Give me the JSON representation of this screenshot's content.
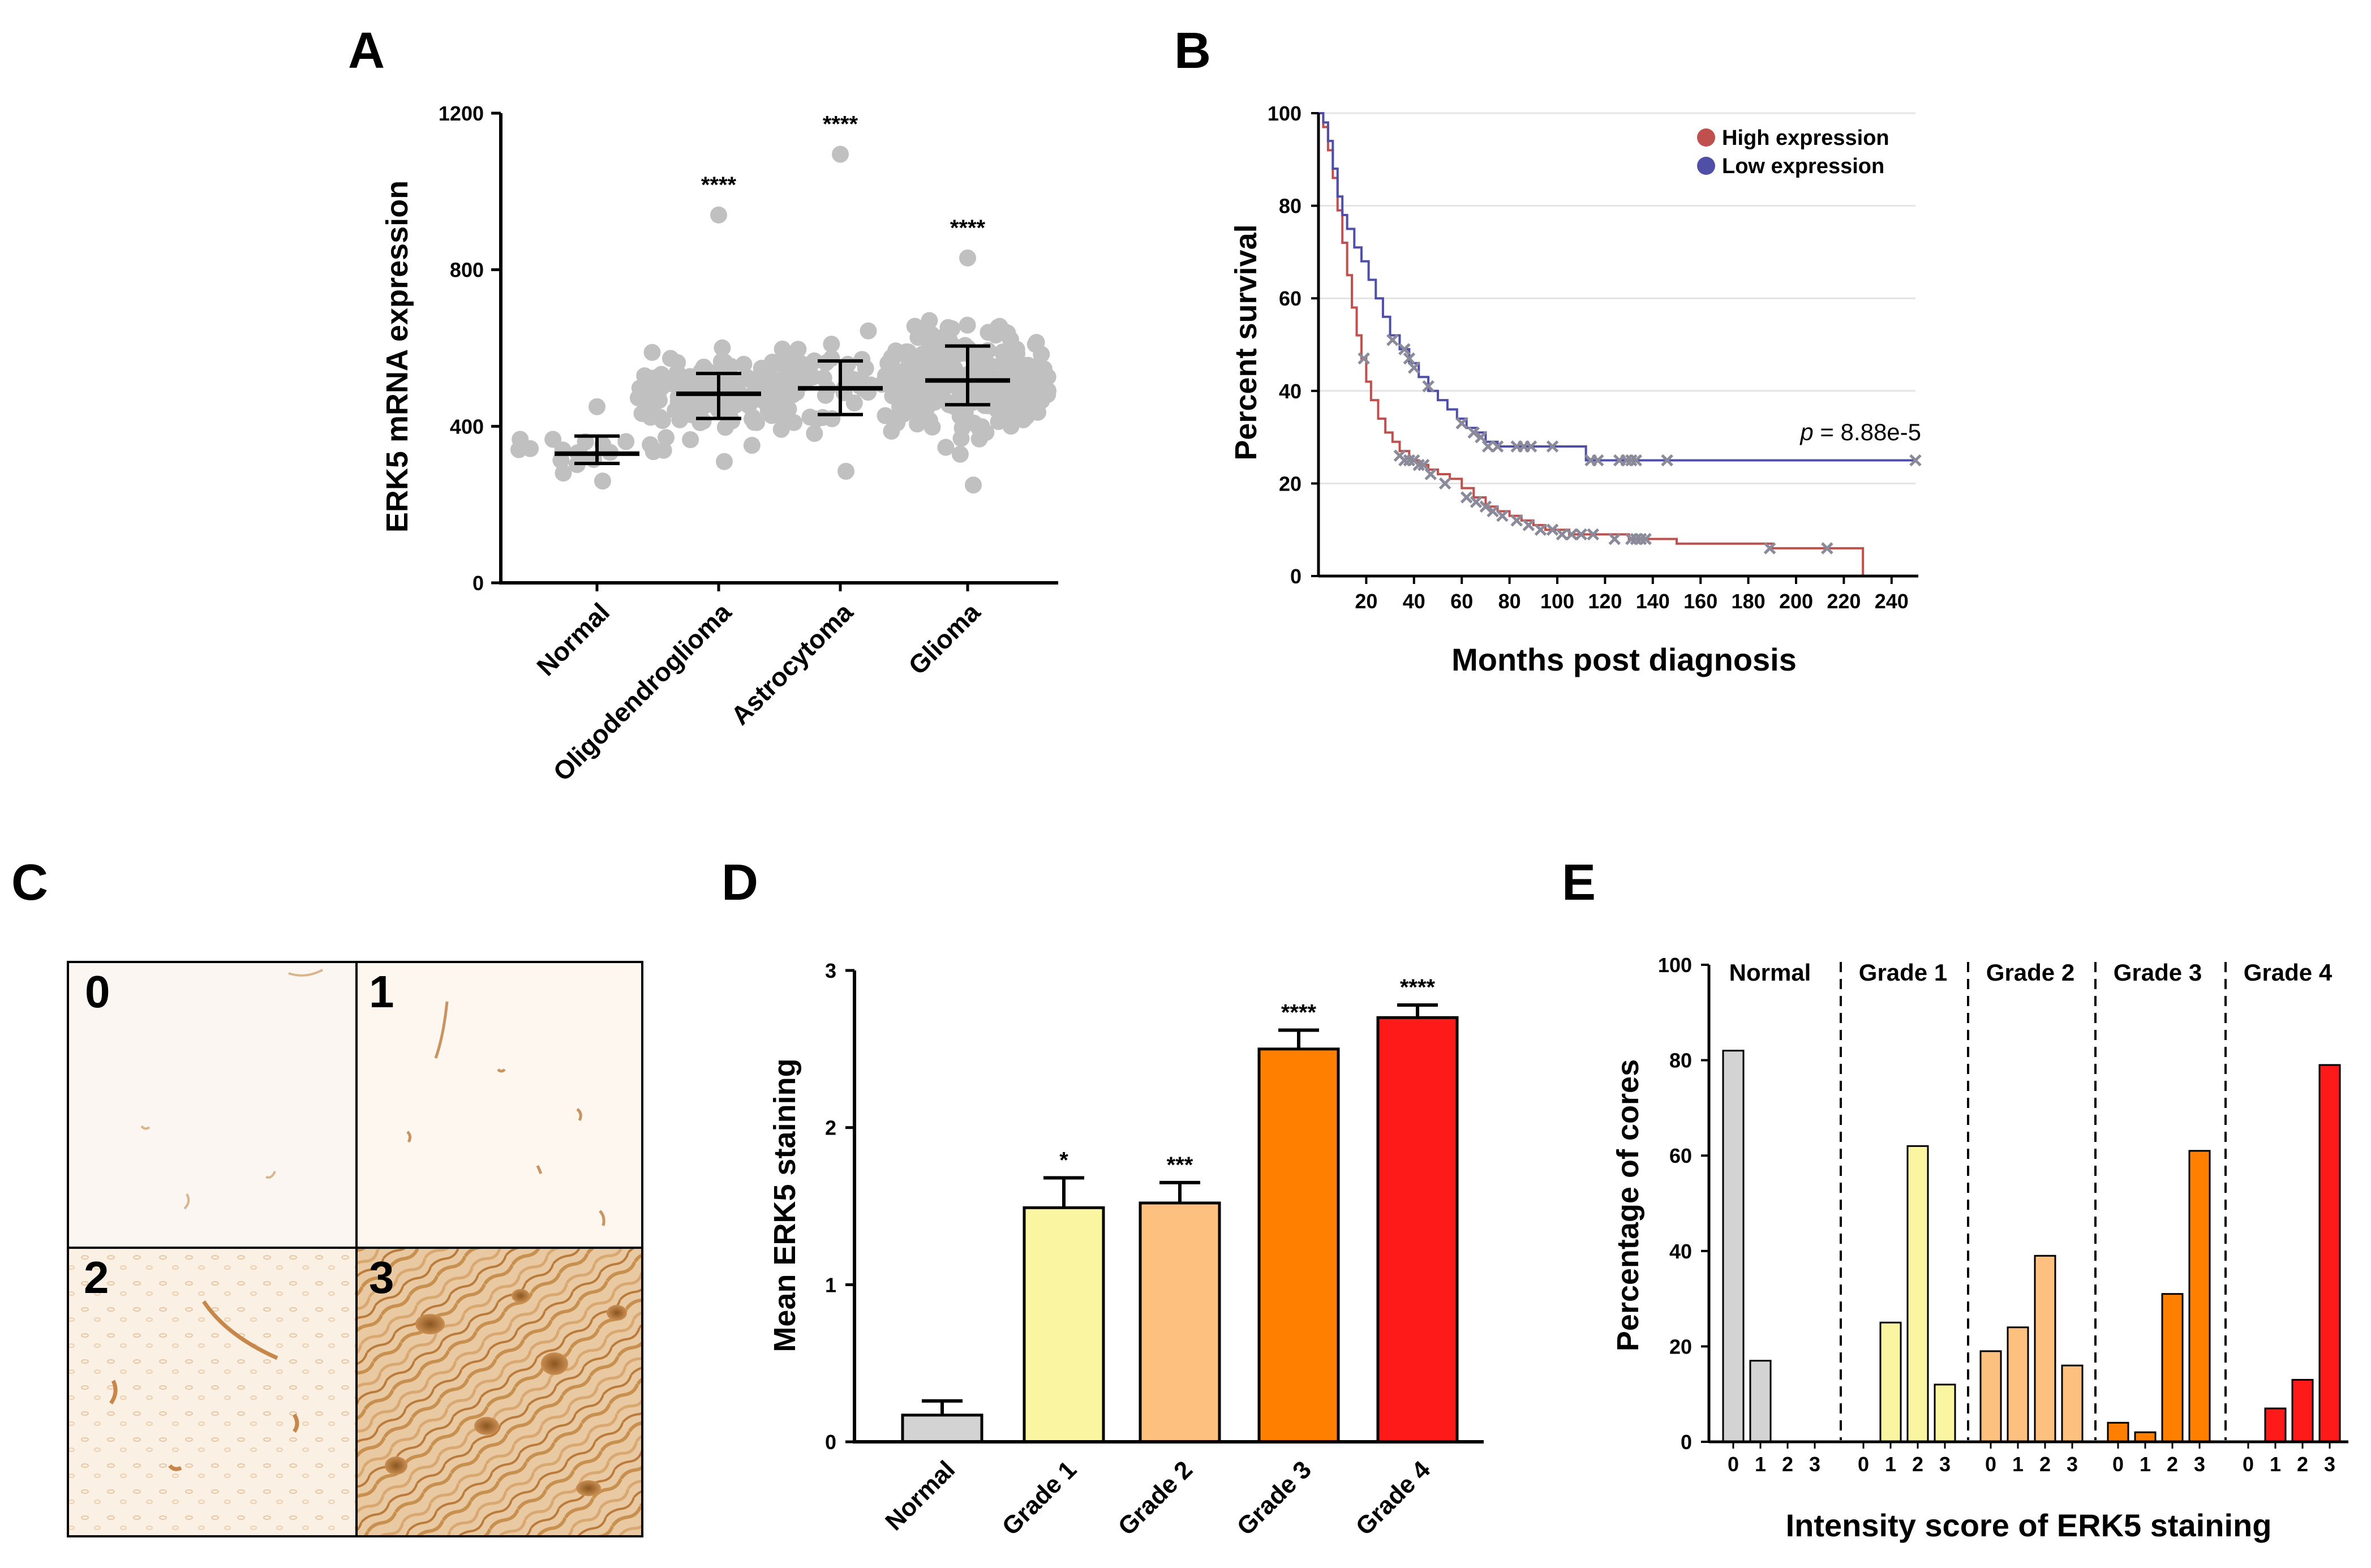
{
  "panels": {
    "a": "A",
    "b": "B",
    "c": "C",
    "d": "D",
    "e": "E"
  },
  "colors": {
    "dots": "#c0c0c0",
    "high": "#c0504d",
    "low": "#4f4fa8",
    "censor": "#8a8a9a",
    "normal": "#d3d3d3",
    "grade1": "#f9f5a0",
    "grade2": "#fdc07f",
    "grade3": "#ff8000",
    "grade4": "#ff1a1a"
  },
  "chart_data": [
    {
      "id": "A",
      "type": "scatter",
      "ylabel": "ERK5 mRNA expression",
      "xlabel": "",
      "ylim": [
        0,
        1200
      ],
      "yticks": [
        "0",
        "400",
        "800",
        "1200"
      ],
      "categories": [
        "Normal",
        "Oligodendroglioma",
        "Astrocytoma",
        "Glioma"
      ],
      "means": [
        330,
        483,
        497,
        517
      ],
      "err_low": [
        305,
        420,
        430,
        455
      ],
      "err_high": [
        375,
        535,
        567,
        605
      ],
      "range_low": [
        260,
        310,
        285,
        250
      ],
      "range_high": [
        450,
        940,
        1095,
        830
      ],
      "n_points": [
        18,
        140,
        70,
        260
      ],
      "significance": [
        "",
        "****",
        "****",
        "****"
      ]
    },
    {
      "id": "B",
      "type": "line",
      "ylabel": "Percent survival",
      "xlabel": "Months post diagnosis",
      "xlim": [
        0,
        250
      ],
      "ylim": [
        0,
        100
      ],
      "xticks": [
        "20",
        "40",
        "60",
        "80",
        "100",
        "120",
        "140",
        "160",
        "180",
        "200",
        "220",
        "240"
      ],
      "yticks": [
        "0",
        "20",
        "40",
        "60",
        "80",
        "100"
      ],
      "annotation": {
        "p_label": "p",
        "p_rest": " = 8.88e-5"
      },
      "series": [
        {
          "name": "High expression",
          "x": [
            0,
            2,
            4,
            6,
            8,
            10,
            12,
            14,
            16,
            18,
            20,
            22,
            25,
            28,
            31,
            34,
            38,
            42,
            46,
            50,
            55,
            60,
            65,
            70,
            75,
            80,
            85,
            90,
            95,
            100,
            105,
            110,
            115,
            120,
            130,
            140,
            150,
            160,
            170,
            180,
            190,
            200,
            210,
            220,
            228,
            228
          ],
          "y": [
            100,
            97,
            92,
            86,
            79,
            72,
            65,
            58,
            52,
            47,
            42,
            38,
            34,
            31,
            29,
            27,
            25,
            24,
            23,
            22,
            21,
            19,
            17,
            15,
            14,
            13,
            12,
            11,
            10,
            10,
            9,
            9,
            9,
            9,
            8,
            8,
            7,
            7,
            7,
            7,
            6,
            6,
            6,
            6,
            6,
            0
          ],
          "censored": [
            [
              19,
              47
            ],
            [
              34,
              26
            ],
            [
              36,
              25
            ],
            [
              38,
              25
            ],
            [
              40,
              25
            ],
            [
              42,
              24
            ],
            [
              44,
              24
            ],
            [
              47,
              22
            ],
            [
              53,
              20
            ],
            [
              62,
              17
            ],
            [
              66,
              16
            ],
            [
              70,
              15
            ],
            [
              73,
              14
            ],
            [
              77,
              13
            ],
            [
              83,
              12
            ],
            [
              88,
              11
            ],
            [
              93,
              10
            ],
            [
              98,
              10
            ],
            [
              102,
              9
            ],
            [
              106,
              9
            ],
            [
              110,
              9
            ],
            [
              115,
              9
            ],
            [
              124,
              8
            ],
            [
              131,
              8
            ],
            [
              133,
              8
            ],
            [
              135,
              8
            ],
            [
              137,
              8
            ],
            [
              189,
              6
            ],
            [
              213,
              6
            ]
          ]
        },
        {
          "name": "Low expression",
          "x": [
            0,
            2,
            4,
            6,
            8,
            10,
            12,
            15,
            18,
            21,
            24,
            27,
            30,
            34,
            38,
            42,
            46,
            50,
            54,
            58,
            62,
            66,
            70,
            75,
            80,
            90,
            100,
            110,
            112,
            150,
            200,
            250
          ],
          "y": [
            100,
            98,
            94,
            88,
            82,
            78,
            75,
            71,
            68,
            64,
            60,
            56,
            52,
            49,
            46,
            43,
            40,
            38,
            36,
            34,
            32,
            31,
            29,
            28,
            28,
            28,
            28,
            28,
            25,
            25,
            25,
            25
          ],
          "censored": [
            [
              31,
              51
            ],
            [
              36,
              49
            ],
            [
              38,
              47
            ],
            [
              40,
              45
            ],
            [
              46,
              41
            ],
            [
              60,
              33
            ],
            [
              65,
              31
            ],
            [
              68,
              30
            ],
            [
              71,
              28
            ],
            [
              75,
              28
            ],
            [
              83,
              28
            ],
            [
              86,
              28
            ],
            [
              89,
              28
            ],
            [
              98,
              28
            ],
            [
              114,
              25
            ],
            [
              117,
              25
            ],
            [
              126,
              25
            ],
            [
              129,
              25
            ],
            [
              131,
              25
            ],
            [
              133,
              25
            ],
            [
              146,
              25
            ],
            [
              250,
              25
            ]
          ]
        }
      ]
    },
    {
      "id": "D",
      "type": "bar",
      "ylabel": "Mean ERK5 staining",
      "xlabel": "",
      "ylim": [
        0,
        3
      ],
      "yticks": [
        "0",
        "1",
        "2",
        "3"
      ],
      "categories": [
        "Normal",
        "Grade 1",
        "Grade 2",
        "Grade 3",
        "Grade 4"
      ],
      "values": [
        0.17,
        1.49,
        1.52,
        2.5,
        2.7
      ],
      "errors": [
        0.09,
        0.19,
        0.13,
        0.12,
        0.08
      ],
      "significance": [
        "",
        "*",
        "***",
        "****",
        "****"
      ]
    },
    {
      "id": "E",
      "type": "bar",
      "ylabel": "Percentage of cores",
      "xlabel": "Intensity score of ERK5 staining",
      "ylim": [
        0,
        100
      ],
      "yticks": [
        "0",
        "20",
        "40",
        "60",
        "80",
        "100"
      ],
      "group_tick_labels": [
        "0",
        "1",
        "2",
        "3"
      ],
      "groups": [
        {
          "name": "Normal",
          "values": [
            82,
            17,
            0,
            0
          ]
        },
        {
          "name": "Grade 1",
          "values": [
            0,
            25,
            62,
            12
          ]
        },
        {
          "name": "Grade 2",
          "values": [
            19,
            24,
            39,
            16
          ]
        },
        {
          "name": "Grade 3",
          "values": [
            4,
            2,
            31,
            61
          ]
        },
        {
          "name": "Grade 4",
          "values": [
            0,
            7,
            13,
            79
          ]
        }
      ]
    }
  ],
  "micrographs": {
    "labels": [
      "0",
      "1",
      "2",
      "3"
    ]
  }
}
